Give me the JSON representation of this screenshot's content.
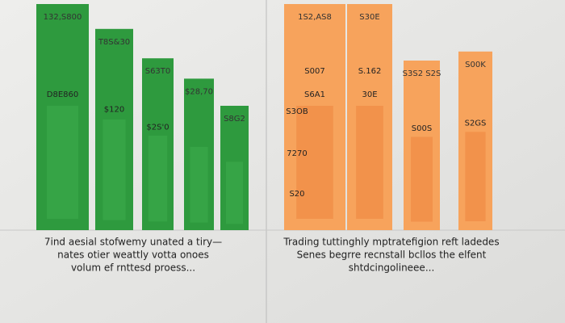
{
  "chart_data": [
    {
      "type": "bar",
      "color": "#2e9a3e",
      "inner_color": "#3aa84a",
      "ylim": [
        0,
        100
      ],
      "values": [
        100,
        89,
        76,
        67,
        55
      ],
      "top_labels": [
        "132,S800",
        "T8S&30",
        "S63T0",
        "$28,70",
        "S8G2"
      ],
      "mid_labels": [
        "D8E860",
        "$120",
        "$2S'0",
        null,
        null
      ],
      "caption": [
        "7ind aesial stofwemy unated a tiry—",
        "nates otier weattly votta onoes",
        "volum ef rnttesd proess..."
      ]
    },
    {
      "type": "bar",
      "color": "#f7a35c",
      "inner_color": "#f08a45",
      "ylim": [
        0,
        100
      ],
      "values": [
        100,
        100,
        75,
        79
      ],
      "top_labels": [
        "1S2,AS8",
        "S30E",
        "S3S2 S2S",
        "S00K"
      ],
      "mid_labels": [
        "S6A1",
        "30E",
        "S00S",
        "S2GS"
      ],
      "side_labels": [
        "S007",
        "S.162",
        "S3OB",
        "7270",
        "S20"
      ],
      "caption": [
        "Trading tuttinghly mptratefigion reft ladedes",
        "Senes begrre recnstall bcllos the elfent",
        "shtdcingolineee..."
      ]
    }
  ]
}
